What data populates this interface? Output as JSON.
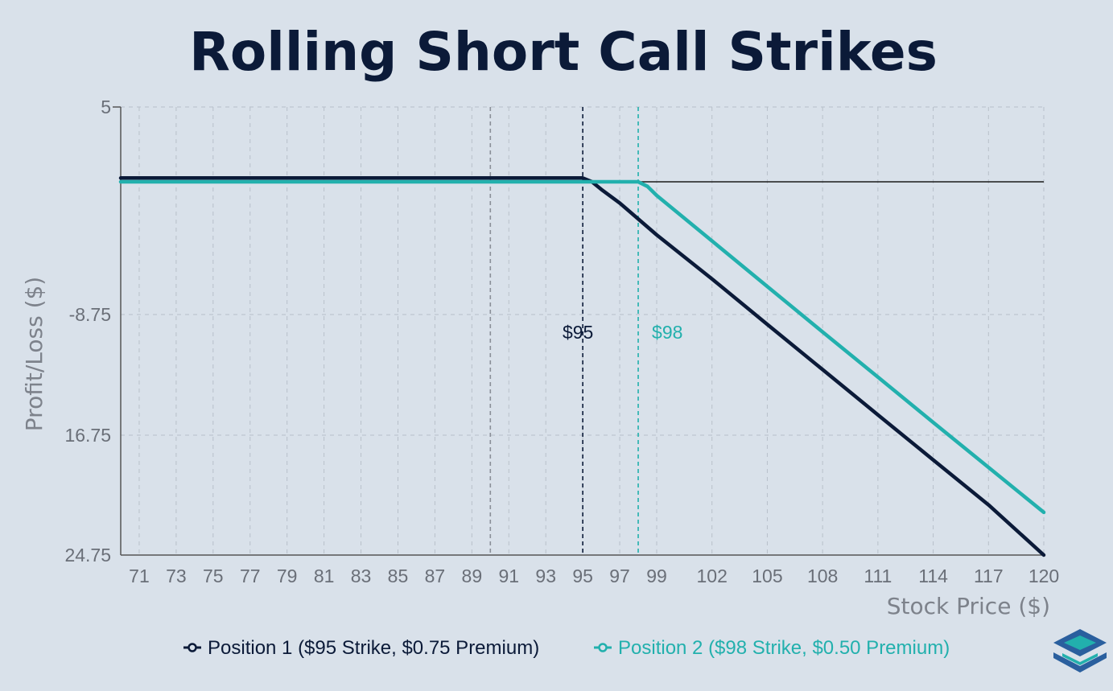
{
  "chart_data": {
    "type": "line",
    "title": "Rolling Short Call Strikes",
    "xlabel": "Stock Price ($)",
    "ylabel": "Profit/Loss ($)",
    "x_ticks": [
      71,
      73,
      75,
      77,
      79,
      81,
      83,
      85,
      87,
      89,
      91,
      93,
      95,
      97,
      99,
      102,
      105,
      108,
      111,
      114,
      117,
      120
    ],
    "y_ticks": [
      {
        "value": 5,
        "label": "5"
      },
      {
        "value": -8.75,
        "label": "-8.75"
      },
      {
        "value": -16.75,
        "label": "16.75"
      },
      {
        "value": -24.75,
        "label": "24.75"
      }
    ],
    "ylim": [
      -24.75,
      5
    ],
    "grid": true,
    "legend_position": "bottom",
    "zero_line": 0,
    "reference_lines": [
      {
        "x": 90,
        "style": "dashed",
        "color": "#8a8f98"
      },
      {
        "x": 95,
        "style": "dashed",
        "color": "#0b1a38",
        "label": "$95"
      },
      {
        "x": 98,
        "style": "dashed",
        "color": "#22b0ad",
        "label": "$98"
      }
    ],
    "series": [
      {
        "name": "Position 1 ($95 Strike, $0.75 Premium)",
        "color": "#0b1a38",
        "points": [
          [
            70,
            0.25
          ],
          [
            95,
            0.25
          ],
          [
            95.5,
            0
          ],
          [
            96,
            -0.5
          ],
          [
            97,
            -1.4
          ],
          [
            99,
            -3.5
          ],
          [
            102,
            -6.4
          ],
          [
            105,
            -9.4
          ],
          [
            108,
            -12.4
          ],
          [
            111,
            -15.4
          ],
          [
            114,
            -18.4
          ],
          [
            117,
            -21.4
          ],
          [
            120,
            -24.75
          ]
        ]
      },
      {
        "name": "Position 2 ($98 Strike, $0.50 Premium)",
        "color": "#22b0ad",
        "points": [
          [
            70,
            0
          ],
          [
            98,
            0
          ],
          [
            98.5,
            -0.3
          ],
          [
            99,
            -0.9
          ],
          [
            102,
            -3.9
          ],
          [
            105,
            -6.9
          ],
          [
            108,
            -9.9
          ],
          [
            111,
            -12.9
          ],
          [
            114,
            -15.9
          ],
          [
            117,
            -18.9
          ],
          [
            120,
            -21.9
          ]
        ]
      }
    ]
  },
  "brand": {
    "icon": "layers-logo-icon",
    "colors": [
      "#2a5f9e",
      "#22b0ad"
    ]
  }
}
